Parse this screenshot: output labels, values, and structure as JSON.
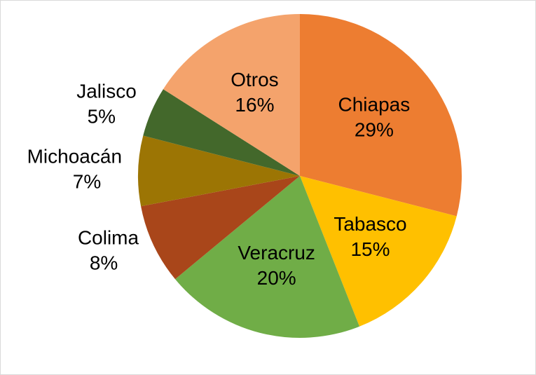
{
  "chart_data": {
    "type": "pie",
    "categories": [
      "Chiapas",
      "Tabasco",
      "Veracruz",
      "Colima",
      "Michoacán",
      "Jalisco",
      "Otros"
    ],
    "values": [
      29,
      15,
      20,
      8,
      7,
      5,
      16
    ],
    "value_labels": [
      "29%",
      "15%",
      "20%",
      "8%",
      "7%",
      "5%",
      "16%"
    ],
    "colors": [
      "#ed7d31",
      "#ffc000",
      "#70ad47",
      "#a9461a",
      "#9c7504",
      "#43682b",
      "#f4a36c"
    ]
  }
}
